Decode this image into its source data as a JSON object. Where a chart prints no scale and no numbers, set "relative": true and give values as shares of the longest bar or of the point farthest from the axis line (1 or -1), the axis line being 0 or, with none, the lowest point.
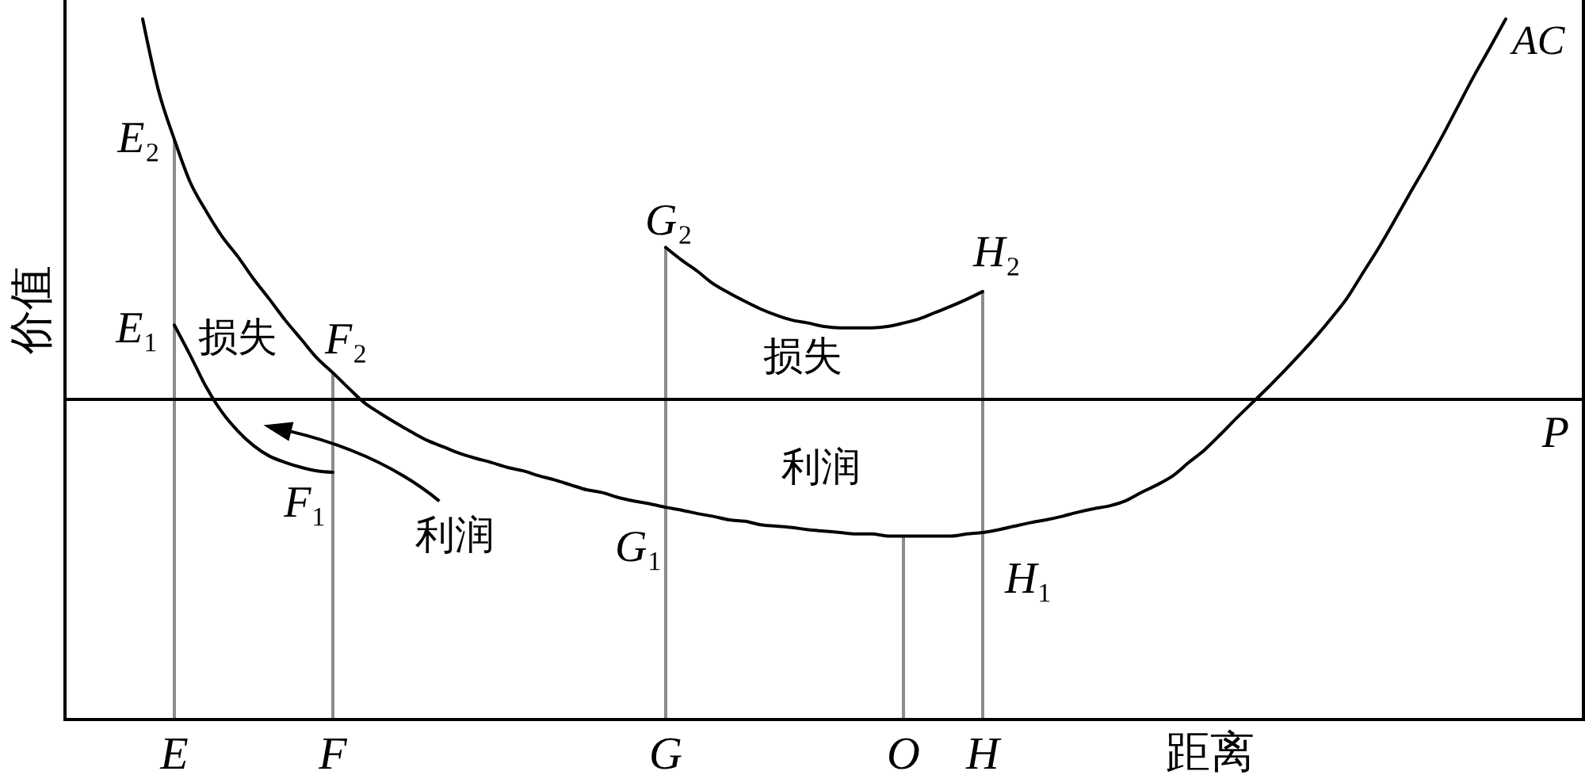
{
  "chart_data": {
    "type": "line",
    "relative": true,
    "xlabel": "距离",
    "ylabel": "价值",
    "categories": [
      null,
      null,
      null,
      null,
      null,
      null,
      "E",
      null,
      null,
      null,
      null,
      null,
      null,
      null,
      null,
      null,
      "F",
      null,
      null,
      null,
      null,
      null,
      null,
      null,
      null,
      null,
      null,
      null,
      null,
      null,
      null,
      null,
      null,
      null,
      null,
      null,
      null,
      "G",
      null,
      null,
      null,
      null,
      null,
      null,
      null,
      null,
      null,
      null,
      null,
      null,
      null,
      null,
      "O",
      null,
      null,
      null,
      null,
      "H",
      null,
      null,
      null,
      null,
      null,
      null,
      null,
      null,
      null,
      null,
      null,
      null,
      null,
      null,
      null,
      null,
      null,
      null,
      null,
      null,
      null,
      null,
      null,
      null,
      null,
      null,
      null,
      null,
      null,
      null,
      null,
      null,
      null,
      null,
      null,
      null,
      null
    ],
    "series": [
      {
        "type": "bar",
        "color": "#8c8c8c",
        "values": [
          null,
          null,
          null,
          null,
          null,
          null,
          0.828,
          null,
          null,
          null,
          null,
          null,
          null,
          null,
          null,
          null,
          0.495,
          null,
          null,
          null,
          null,
          null,
          null,
          null,
          null,
          null,
          null,
          null,
          null,
          null,
          null,
          null,
          null,
          null,
          null,
          null,
          null,
          0.674,
          null,
          null,
          null,
          null,
          null,
          null,
          null,
          null,
          null,
          null,
          null,
          null,
          null,
          null,
          0.262,
          null,
          null,
          null,
          null,
          0.611,
          null,
          null,
          null,
          null,
          null,
          null,
          null,
          null,
          null,
          null,
          null,
          null,
          null,
          null,
          null,
          null,
          null,
          null,
          null,
          null,
          null,
          null,
          null,
          null,
          null,
          null,
          null,
          null,
          null,
          null,
          null,
          null,
          null,
          null,
          null,
          null,
          null
        ]
      },
      {
        "name": "AC",
        "color": "#000000",
        "values": [
          null,
          null,
          null,
          null,
          1.0,
          0.898,
          0.828,
          0.767,
          0.726,
          0.69,
          0.661,
          0.629,
          0.6,
          0.57,
          0.543,
          0.516,
          0.495,
          0.473,
          0.452,
          0.437,
          0.423,
          0.41,
          0.398,
          0.389,
          0.38,
          0.373,
          0.367,
          0.36,
          0.355,
          0.348,
          0.342,
          0.335,
          0.328,
          0.324,
          0.317,
          0.312,
          0.308,
          0.303,
          0.299,
          0.294,
          0.29,
          0.285,
          0.283,
          0.278,
          0.276,
          0.274,
          0.271,
          0.269,
          0.267,
          0.265,
          0.265,
          0.262,
          0.262,
          0.262,
          0.262,
          0.262,
          0.265,
          0.267,
          0.271,
          0.276,
          0.281,
          0.285,
          0.29,
          0.296,
          0.301,
          0.305,
          0.312,
          0.324,
          0.335,
          0.348,
          0.367,
          0.385,
          0.407,
          0.43,
          0.452,
          0.474,
          0.497,
          0.521,
          0.546,
          0.573,
          0.602,
          0.638,
          0.674,
          0.713,
          0.753,
          0.792,
          0.833,
          0.876,
          0.919,
          0.959,
          1.0,
          null,
          null,
          null,
          null
        ]
      },
      {
        "color": "#000000",
        "values": [
          null,
          null,
          null,
          null,
          null,
          null,
          0.563,
          0.52,
          0.475,
          0.439,
          0.412,
          0.391,
          0.376,
          0.367,
          0.36,
          0.355,
          0.353,
          null,
          null,
          null,
          null,
          null,
          null,
          null,
          null,
          null,
          null,
          null,
          null,
          null,
          null,
          null,
          null,
          null,
          null,
          null,
          null,
          null,
          null,
          null,
          null,
          null,
          null,
          null,
          null,
          null,
          null,
          null,
          null,
          null,
          null,
          null,
          null,
          null,
          null,
          null,
          null,
          null,
          null,
          null,
          null,
          null,
          null,
          null,
          null,
          null,
          null,
          null,
          null,
          null,
          null,
          null,
          null,
          null,
          null,
          null,
          null,
          null,
          null,
          null,
          null,
          null,
          null,
          null,
          null,
          null,
          null,
          null,
          null,
          null,
          null,
          null,
          null,
          null,
          null
        ]
      },
      {
        "color": "#000000",
        "values": [
          null,
          null,
          null,
          null,
          null,
          null,
          null,
          null,
          null,
          null,
          null,
          null,
          null,
          null,
          null,
          null,
          null,
          null,
          null,
          null,
          null,
          null,
          null,
          null,
          null,
          null,
          null,
          null,
          null,
          null,
          null,
          null,
          null,
          null,
          null,
          null,
          null,
          0.674,
          0.656,
          0.64,
          0.622,
          0.609,
          0.597,
          0.586,
          0.577,
          0.57,
          0.566,
          0.561,
          0.559,
          0.559,
          0.559,
          0.561,
          0.566,
          0.572,
          0.581,
          0.59,
          0.6,
          0.611,
          null,
          null,
          null,
          null,
          null,
          null,
          null,
          null,
          null,
          null,
          null,
          null,
          null,
          null,
          null,
          null,
          null,
          null,
          null,
          null,
          null,
          null,
          null,
          null,
          null,
          null,
          null,
          null,
          null,
          null,
          null,
          null,
          null,
          null,
          null,
          null,
          null
        ]
      }
    ],
    "ref_lines": [
      {
        "axis": "y",
        "value": 0.457,
        "label": "P",
        "color": "#000000"
      }
    ],
    "annotations": [
      {
        "text": "E₂",
        "x": "E",
        "y": 0.828
      },
      {
        "text": "E₁",
        "x": "E",
        "y": 0.563
      },
      {
        "text": "F₂",
        "x": "F",
        "y": 0.495
      },
      {
        "text": "F₁",
        "x": "F",
        "y": 0.353
      },
      {
        "text": "G₂",
        "x": "G",
        "y": 0.674
      },
      {
        "text": "G₁",
        "x": "G",
        "y": 0.303
      },
      {
        "text": "H₂",
        "x": "H",
        "y": 0.611
      },
      {
        "text": "H₁",
        "x": "H",
        "y": 0.267
      },
      "损失",
      "损失",
      "利润",
      "利润"
    ]
  }
}
